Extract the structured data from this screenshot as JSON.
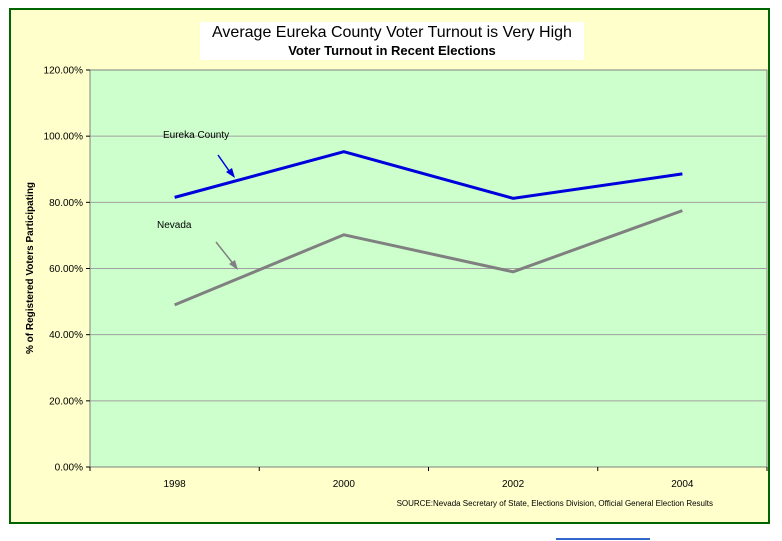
{
  "chart_data": {
    "type": "line",
    "title": "Average Eureka County Voter Turnout is Very High",
    "subtitle": "Voter Turnout in Recent Elections",
    "xlabel": "",
    "ylabel": "% of Registered Voters Participating",
    "categories": [
      "1998",
      "2000",
      "2002",
      "2004"
    ],
    "ylim": [
      0,
      120
    ],
    "yticks": [
      "0.00%",
      "20.00%",
      "40.00%",
      "60.00%",
      "80.00%",
      "100.00%",
      "120.00%"
    ],
    "grid": true,
    "series": [
      {
        "name": "Eureka County",
        "values": [
          81.5,
          95.3,
          81.2,
          88.6
        ],
        "color": "#0000dd"
      },
      {
        "name": "Nevada",
        "values": [
          49.0,
          70.2,
          59.0,
          77.5
        ],
        "color": "#808080"
      }
    ],
    "source": "SOURCE:Nevada Secretary of State, Elections Division, Official General Election Results",
    "colors": {
      "plot_background": "#ccffcc",
      "frame_background": "#ffffcc",
      "frame_border": "#006400"
    }
  }
}
